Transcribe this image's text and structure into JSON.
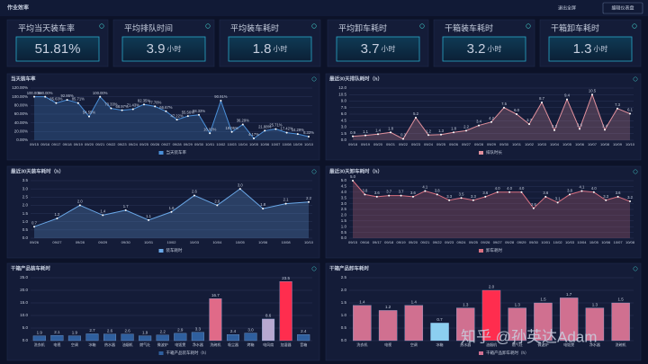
{
  "header": {
    "title": "作业效率",
    "buttons": [
      "退出全屏",
      "编辑仪表盘"
    ]
  },
  "kpis": [
    {
      "title": "平均当天装车率",
      "value": "51.81%"
    },
    {
      "title": "平均排队时间",
      "value": "3.9",
      "unit": "小时"
    },
    {
      "title": "平均装车耗时",
      "value": "1.8",
      "unit": "小时"
    },
    {
      "title": "平均卸车耗时",
      "value": "3.7",
      "unit": "小时"
    },
    {
      "title": "干箱装车耗时",
      "value": "3.2",
      "unit": "小时"
    },
    {
      "title": "干箱卸车耗时",
      "value": "1.3",
      "unit": "小时"
    }
  ],
  "watermark": "知乎 @孙英达Adam",
  "chart_data": [
    {
      "type": "line",
      "title": "当天装车率",
      "categories": [
        "09/15",
        "09/16",
        "09/17",
        "09/18",
        "09/19",
        "09/20",
        "09/21",
        "09/22",
        "09/23",
        "09/24",
        "09/25",
        "09/26",
        "09/27",
        "09/28",
        "09/29",
        "09/30",
        "10/01",
        "10/02",
        "10/03",
        "10/04",
        "10/05",
        "10/06",
        "10/07",
        "10/08",
        "10/09",
        "10/10"
      ],
      "series": [
        {
          "name": "当天装车率",
          "color": "#4a8fd8",
          "values": [
            100,
            100,
            85.63,
            92.86,
            85.71,
            54.55,
            100,
            73.33,
            68.97,
            71.43,
            82.35,
            77.78,
            66.67,
            47.22,
            55.56,
            58.33,
            16,
            90.91,
            19.05,
            36.29,
            4.17,
            21.88,
            25.71,
            17.42,
            14.29,
            8.33
          ],
          "value_labels": [
            "100.00%",
            "100.00%",
            "85.63%",
            "92.86%",
            "85.71%",
            "54.55%",
            "100.00%",
            "73.33%",
            "68.97%",
            "71.43%",
            "82.35%",
            "77.78%",
            "66.67%",
            "47.22%",
            "55.56%",
            "58.33%",
            "16.00%",
            "90.91%",
            "19.05%",
            "36.29%",
            "4.17%",
            "21.88%",
            "25.71%",
            "17.42%",
            "14.29%",
            "8.33%"
          ]
        }
      ],
      "ylim": [
        0,
        120
      ],
      "yticks": [
        {
          "value": 0,
          "label": "0.00%"
        },
        {
          "value": 20,
          "label": "20.00%"
        },
        {
          "value": 40,
          "label": "40.00%"
        },
        {
          "value": 60,
          "label": "60.00%"
        },
        {
          "value": 80,
          "label": "80.00%"
        },
        {
          "value": 100,
          "label": "100.00%"
        },
        {
          "value": 120,
          "label": "120.00%"
        }
      ],
      "grid": true
    },
    {
      "type": "line",
      "title": "最近30天排队耗时（h）",
      "categories": [
        "09/18",
        "09/19",
        "09/20",
        "09/21",
        "09/22",
        "09/23",
        "09/24",
        "09/25",
        "09/26",
        "09/27",
        "09/28",
        "09/29",
        "09/30",
        "10/01",
        "10/02",
        "10/03",
        "10/04",
        "10/05",
        "10/06",
        "10/07",
        "10/08",
        "10/09",
        "10/10"
      ],
      "series": [
        {
          "name": "排队时长",
          "color": "#e0909c",
          "values": [
            0.9,
            1.1,
            1.4,
            1.8,
            0.3,
            5.2,
            1.2,
            1.3,
            1.8,
            2.2,
            3.4,
            4.2,
            7.5,
            6,
            3.7,
            8.7,
            2.3,
            9.4,
            2.6,
            10.5,
            2.4,
            7.3,
            6.1
          ],
          "value_labels": [
            "0.9",
            "1.1",
            "1.4",
            "1.8",
            "0.3",
            "5.2",
            "1.2",
            "1.3",
            "1.8",
            "2.2",
            "3.4",
            "4.2",
            "7.5",
            "6.0",
            "3.7",
            "8.7",
            "2.3",
            "9.4",
            "2.6",
            "10.5",
            "2.4",
            "7.3",
            "6.1"
          ]
        }
      ],
      "ylim": [
        0,
        12
      ],
      "yticks": [
        {
          "value": 0,
          "label": "0.0"
        },
        1.5,
        {
          "value": 3,
          "label": "3.0"
        },
        4.5,
        {
          "value": 6,
          "label": "6.0"
        },
        7.5,
        {
          "value": 9,
          "label": "9.0"
        },
        10.5,
        {
          "value": 12,
          "label": "12.0"
        }
      ],
      "grid": true
    },
    {
      "type": "line",
      "title": "最近30天装车耗时（h）",
      "categories": [
        "09/26",
        "09/27",
        "09/28",
        "09/29",
        "09/30",
        "10/01",
        "10/02",
        "10/03",
        "10/04",
        "10/05",
        "10/06",
        "10/08",
        "10/10"
      ],
      "series": [
        {
          "name": "装车耗时",
          "color": "#6aa8e8",
          "values": [
            0.7,
            1.2,
            2,
            1.4,
            1.7,
            1.1,
            1.6,
            2.6,
            2,
            3,
            1.8,
            2.1,
            2.2
          ],
          "value_labels": [
            "0.7",
            "1.2",
            "2.0",
            "1.4",
            "1.7",
            "1.1",
            "1.6",
            "2.6",
            "2.0",
            "3.0",
            "1.8",
            "2.1",
            "2.2"
          ]
        }
      ],
      "ylim": [
        0,
        3.5
      ],
      "yticks": [
        {
          "value": 0,
          "label": "0.0"
        },
        0.5,
        {
          "value": 1,
          "label": "1.0"
        },
        1.5,
        {
          "value": 2,
          "label": "2.0"
        },
        2.5,
        {
          "value": 3,
          "label": "3.0"
        },
        3.5
      ],
      "grid": true
    },
    {
      "type": "line",
      "title": "最近30天卸车耗时（h）",
      "categories": [
        "09/15",
        "09/16",
        "09/17",
        "09/18",
        "09/19",
        "09/20",
        "09/21",
        "09/22",
        "09/23",
        "09/24",
        "09/25",
        "09/26",
        "09/27",
        "09/28",
        "09/29",
        "09/30",
        "10/01",
        "10/02",
        "10/03",
        "10/04",
        "10/05",
        "10/06",
        "10/07",
        "10/08"
      ],
      "series": [
        {
          "name": "卸车耗时",
          "color": "#d87080",
          "values": [
            5,
            3.8,
            3.6,
            3.7,
            3.7,
            3.6,
            4.1,
            3.8,
            3.3,
            3.5,
            3.3,
            3.6,
            4,
            4,
            4,
            2.6,
            3.6,
            3.1,
            3.8,
            4.1,
            4,
            3.3,
            3.6,
            3.2
          ],
          "value_labels": [
            "5.0",
            "3.8",
            "3.6",
            "3.7",
            "3.7",
            "3.6",
            "4.1",
            "3.8",
            "3.3",
            "3.5",
            "3.3",
            "3.6",
            "4.0",
            "4.0",
            "4.0",
            "2.6",
            "3.6",
            "3.1",
            "3.8",
            "4.1",
            "4.0",
            "3.3",
            "3.6",
            "3.2"
          ]
        }
      ],
      "ylim": [
        0,
        5
      ],
      "yticks": [
        {
          "value": 0,
          "label": "0.0"
        },
        0.5,
        {
          "value": 1,
          "label": "1.0"
        },
        1.5,
        {
          "value": 2,
          "label": "2.0"
        },
        2.5,
        {
          "value": 3,
          "label": "3.0"
        },
        3.5,
        {
          "value": 4,
          "label": "4.0"
        },
        4.5,
        {
          "value": 5,
          "label": "5.0"
        }
      ],
      "grid": true
    },
    {
      "type": "bar",
      "title": "干箱产品装车耗时",
      "categories": [
        "洗衣机",
        "电视",
        "空调",
        "冰箱",
        "热水器",
        "油烟机",
        "燃气灶",
        "微波炉",
        "电饭煲",
        "净水器",
        "洗碗机",
        "吸尘器",
        "烤箱",
        "电风扇",
        "加湿器",
        "音箱"
      ],
      "series": [
        {
          "name": "干箱产品装车耗时（h）",
          "color": "#2f5f9e",
          "colors": [
            "#2f5f9e",
            "#2f5f9e",
            "#2f5f9e",
            "#2f5f9e",
            "#2f5f9e",
            "#2f5f9e",
            "#2f5f9e",
            "#2f5f9e",
            "#2f5f9e",
            "#2f5f9e",
            "#e06a88",
            "#2f5f9e",
            "#2f5f9e",
            "#b8a8d0",
            "#ff2d4e",
            "#2f5f9e"
          ],
          "values": [
            1.9,
            2.1,
            1.9,
            2.7,
            2.6,
            2.6,
            1.9,
            2.2,
            2.9,
            3.3,
            16.7,
            2.4,
            3,
            8.6,
            23.5,
            2.4
          ],
          "value_labels": [
            "1.9",
            "2.1",
            "1.9",
            "2.7",
            "2.6",
            "2.6",
            "1.9",
            "2.2",
            "2.9",
            "3.3",
            "16.7",
            "2.4",
            "3.0",
            "8.6",
            "23.5",
            "2.4"
          ]
        }
      ],
      "ylim": [
        0,
        25
      ],
      "yticks": [
        {
          "value": 0,
          "label": "0.0"
        },
        {
          "value": 5,
          "label": "5.0"
        },
        {
          "value": 10,
          "label": "10.0"
        },
        {
          "value": 15,
          "label": "15.0"
        },
        {
          "value": 20,
          "label": "20.0"
        },
        {
          "value": 25,
          "label": "25.0"
        }
      ],
      "grid": true
    },
    {
      "type": "bar",
      "title": "干箱产品卸车耗时",
      "categories": [
        "洗衣机",
        "电视",
        "空调",
        "冰箱",
        "热水器",
        "油烟机",
        "燃气灶",
        "微波炉",
        "电饭煲",
        "净水器",
        "洗碗机"
      ],
      "series": [
        {
          "name": "干箱产品卸车耗时（h）",
          "color": "#d07090",
          "colors": [
            "#d07090",
            "#d07090",
            "#d07090",
            "#8ccff0",
            "#d07090",
            "#ff2d4e",
            "#d07090",
            "#d07090",
            "#d07090",
            "#d07090",
            "#d07090"
          ],
          "values": [
            1.4,
            1.2,
            1.4,
            0.7,
            1.3,
            2,
            1.3,
            1.5,
            1.7,
            1.3,
            1.5
          ],
          "value_labels": [
            "1.4",
            "1.2",
            "1.4",
            "0.7",
            "1.3",
            "2.0",
            "1.3",
            "1.5",
            "1.7",
            "1.3",
            "1.5"
          ]
        }
      ],
      "ylim": [
        0,
        2.5
      ],
      "yticks": [
        {
          "value": 0,
          "label": "0.0"
        },
        0.5,
        {
          "value": 1,
          "label": "1.0"
        },
        1.5,
        {
          "value": 2,
          "label": "2.0"
        },
        2.5
      ],
      "grid": true
    }
  ]
}
